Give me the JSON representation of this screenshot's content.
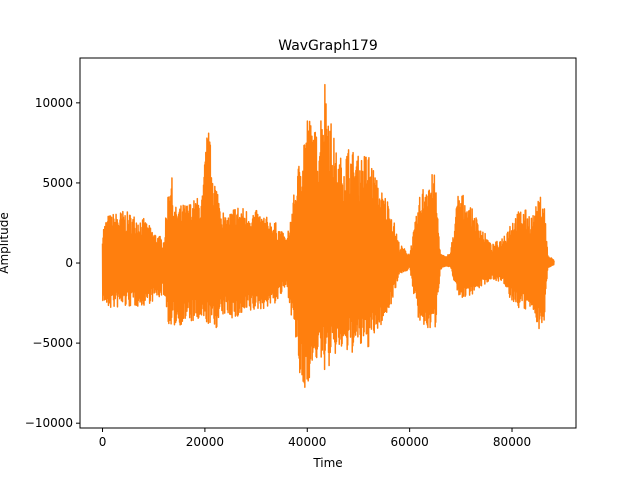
{
  "chart_data": {
    "type": "line",
    "title": "WavGraph179",
    "xlabel": "Time",
    "ylabel": "Amplitude",
    "xlim": [
      -4400,
      92500
    ],
    "ylim": [
      -10300,
      12800
    ],
    "xticks": [
      0,
      20000,
      40000,
      60000,
      80000
    ],
    "xtick_labels": [
      "0",
      "20000",
      "40000",
      "60000",
      "80000"
    ],
    "yticks": [
      -10000,
      -5000,
      0,
      5000,
      10000
    ],
    "ytick_labels": [
      "−10000",
      "−5000",
      "0",
      "5000",
      "10000"
    ],
    "grid": false,
    "legend": "none",
    "series": [
      {
        "color": "#ff7f0e",
        "points": 88200,
        "envelope": {
          "x": [
            0,
            1000,
            4000,
            8000,
            10000,
            12000,
            13300,
            14000,
            17000,
            19500,
            20500,
            22000,
            24000,
            26000,
            28000,
            30000,
            32000,
            34000,
            36000,
            38000,
            39000,
            40000,
            42000,
            43500,
            44500,
            46000,
            48000,
            50000,
            52000,
            54000,
            56000,
            58000,
            60000,
            62000,
            63500,
            65000,
            66000,
            67000,
            68000,
            69500,
            70500,
            72000,
            74000,
            76000,
            78000,
            80000,
            82000,
            84000,
            85500,
            86200,
            87000,
            88200
          ],
          "upper": [
            2200,
            3000,
            3300,
            2800,
            2000,
            1500,
            6400,
            3500,
            3800,
            4300,
            8800,
            5300,
            2800,
            3700,
            3400,
            3300,
            2900,
            2500,
            1500,
            5500,
            7800,
            9500,
            8000,
            11900,
            9200,
            6400,
            7400,
            6700,
            7000,
            4800,
            3900,
            1200,
            600,
            4200,
            5700,
            5500,
            600,
            400,
            700,
            4500,
            4300,
            3500,
            2300,
            1100,
            1600,
            2800,
            3500,
            3000,
            4200,
            4300,
            500,
            200
          ],
          "lower": [
            -2400,
            -2900,
            -2800,
            -2700,
            -2400,
            -2000,
            -4600,
            -4000,
            -3700,
            -3900,
            -3800,
            -4200,
            -3200,
            -3600,
            -3300,
            -3000,
            -2800,
            -2500,
            -1500,
            -5500,
            -9000,
            -7600,
            -6000,
            -6800,
            -6500,
            -5500,
            -5800,
            -5400,
            -5300,
            -4200,
            -3000,
            -700,
            -400,
            -4200,
            -4200,
            -4200,
            -400,
            -200,
            -300,
            -2100,
            -2200,
            -2000,
            -1500,
            -1000,
            -1200,
            -2500,
            -3000,
            -3000,
            -4300,
            -4200,
            -300,
            -100
          ]
        }
      }
    ]
  }
}
